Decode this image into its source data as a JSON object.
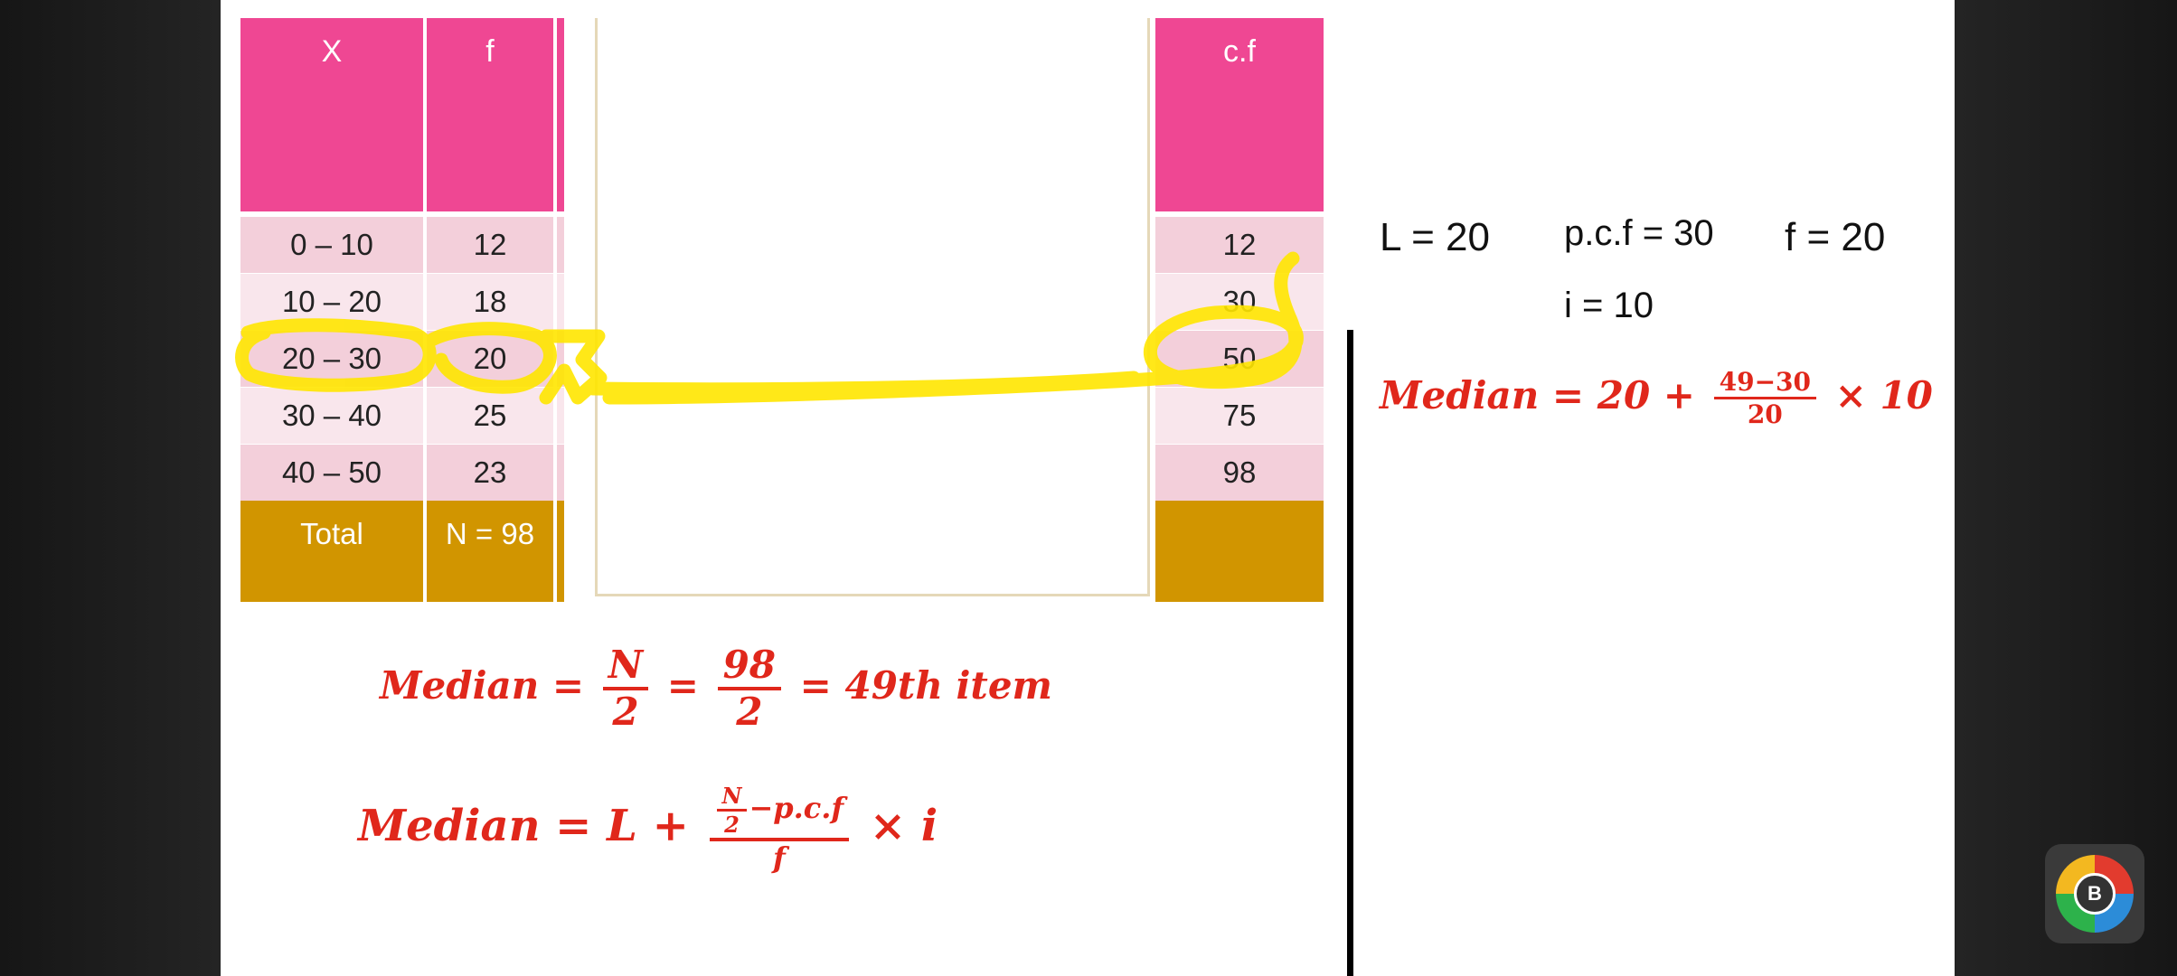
{
  "table": {
    "headers": {
      "x": "X",
      "f": "f",
      "cf": "c.f"
    },
    "rows": [
      {
        "x": "0 – 10",
        "f": "12",
        "cf": "12"
      },
      {
        "x": "10 – 20",
        "f": "18",
        "cf": "30"
      },
      {
        "x": "20 – 30",
        "f": "20",
        "cf": "50"
      },
      {
        "x": "30 – 40",
        "f": "25",
        "cf": "75"
      },
      {
        "x": "40 – 50",
        "f": "23",
        "cf": "98"
      }
    ],
    "total": {
      "label": "Total",
      "n": "N = 98",
      "cf": ""
    },
    "colors": {
      "header": "#ef4793",
      "row_dark": "#f3cfda",
      "row_light": "#f9e6ec",
      "total": "#d19500",
      "highlight": "#ffe600"
    }
  },
  "values": {
    "L": "L = 20",
    "pcf": "p.c.f = 30",
    "f": "f = 20",
    "i": "i = 10"
  },
  "formula_med": {
    "lhs": "Median =",
    "n_num": "N",
    "n_den": "2",
    "eq1": "=",
    "v_num": "98",
    "v_den": "2",
    "rest": "= 49th item"
  },
  "formula_general": {
    "lhs": "Median = L +",
    "num_frac_num": "N",
    "num_frac_den": "2",
    "num_rest": "−p.c.f",
    "den": "f",
    "tail": "× i"
  },
  "formula_result": {
    "lhs": "Median = 20 +",
    "num": "49−30",
    "den": "20",
    "tail": "× 10"
  },
  "logo_letter": "B"
}
